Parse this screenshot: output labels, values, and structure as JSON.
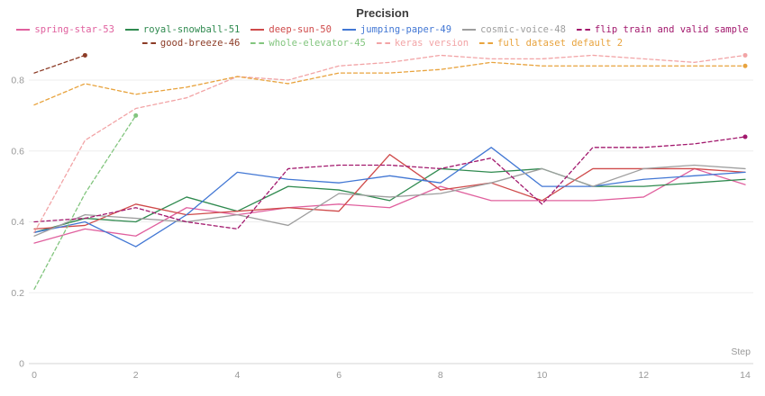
{
  "header": {
    "title": "Precision"
  },
  "chart_data": {
    "type": "line",
    "title": "Precision",
    "xlabel": "Step",
    "ylabel": "",
    "x_range": [
      0,
      14
    ],
    "y_range": [
      0,
      0.93
    ],
    "x_ticks": [
      0,
      2,
      4,
      6,
      8,
      10,
      12,
      14
    ],
    "y_ticks": [
      0,
      0.2,
      0.4,
      0.6,
      0.8
    ],
    "grid": "horizontal-only",
    "legend_position": "top",
    "colors": {
      "grid": "#ededed",
      "axis": "#d6d6d6",
      "tick_text": "#999999",
      "title_text": "#3b3b3b"
    },
    "series": [
      {
        "name": "spring-star-53",
        "color": "#e0609e",
        "style": "solid",
        "end_dot": false,
        "legend_row": 1,
        "x": [
          0,
          1,
          2,
          3,
          4,
          5,
          6,
          7,
          8,
          9,
          10,
          11,
          12,
          13,
          14
        ],
        "values": [
          0.34,
          0.38,
          0.36,
          0.44,
          0.42,
          0.44,
          0.45,
          0.44,
          0.5,
          0.46,
          0.46,
          0.46,
          0.47,
          0.55,
          0.505
        ]
      },
      {
        "name": "royal-snowball-51",
        "color": "#2f8a4f",
        "style": "solid",
        "end_dot": false,
        "legend_row": 1,
        "x": [
          0,
          1,
          2,
          3,
          4,
          5,
          6,
          7,
          8,
          9,
          10,
          11,
          12,
          13,
          14
        ],
        "values": [
          0.37,
          0.41,
          0.4,
          0.47,
          0.43,
          0.5,
          0.49,
          0.46,
          0.55,
          0.54,
          0.55,
          0.5,
          0.5,
          0.51,
          0.52
        ]
      },
      {
        "name": "deep-sun-50",
        "color": "#cf4a4a",
        "style": "solid",
        "end_dot": false,
        "legend_row": 1,
        "x": [
          0,
          1,
          2,
          3,
          4,
          5,
          6,
          7,
          8,
          9,
          10,
          11,
          12,
          13,
          14
        ],
        "values": [
          0.38,
          0.39,
          0.45,
          0.42,
          0.43,
          0.44,
          0.43,
          0.59,
          0.49,
          0.51,
          0.46,
          0.55,
          0.55,
          0.55,
          0.54
        ]
      },
      {
        "name": "jumping-paper-49",
        "color": "#4277d4",
        "style": "solid",
        "end_dot": false,
        "legend_row": 1,
        "x": [
          0,
          1,
          2,
          3,
          4,
          5,
          6,
          7,
          8,
          9,
          10,
          11,
          12,
          13,
          14
        ],
        "values": [
          0.37,
          0.4,
          0.33,
          0.42,
          0.54,
          0.52,
          0.51,
          0.53,
          0.51,
          0.61,
          0.5,
          0.5,
          0.52,
          0.53,
          0.54
        ]
      },
      {
        "name": "cosmic-voice-48",
        "color": "#9e9e9e",
        "style": "solid",
        "end_dot": false,
        "legend_row": 1,
        "x": [
          0,
          1,
          2,
          3,
          4,
          5,
          6,
          7,
          8,
          9,
          10,
          11,
          12,
          13,
          14
        ],
        "values": [
          0.36,
          0.42,
          0.41,
          0.4,
          0.42,
          0.39,
          0.48,
          0.47,
          0.48,
          0.51,
          0.55,
          0.5,
          0.55,
          0.56,
          0.55
        ]
      },
      {
        "name": "flip train and valid sample",
        "color": "#a2186d",
        "style": "dashed",
        "end_dot": true,
        "legend_row": 1,
        "x": [
          0,
          1,
          2,
          3,
          4,
          5,
          6,
          7,
          8,
          9,
          10,
          11,
          12,
          13,
          14
        ],
        "values": [
          0.4,
          0.41,
          0.44,
          0.4,
          0.38,
          0.55,
          0.56,
          0.56,
          0.55,
          0.58,
          0.45,
          0.61,
          0.61,
          0.62,
          0.64
        ]
      },
      {
        "name": "good-breeze-46",
        "color": "#8c3b26",
        "style": "dashed",
        "end_dot": true,
        "legend_row": 2,
        "x": [
          0,
          1
        ],
        "values": [
          0.82,
          0.87
        ]
      },
      {
        "name": "whole-elevator-45",
        "color": "#82c57e",
        "style": "dashed",
        "end_dot": true,
        "legend_row": 2,
        "x": [
          0,
          1,
          2
        ],
        "values": [
          0.21,
          0.48,
          0.7
        ]
      },
      {
        "name": "keras version",
        "color": "#f2a4a6",
        "style": "dashed",
        "end_dot": true,
        "legend_row": 2,
        "x": [
          0,
          1,
          2,
          3,
          4,
          5,
          6,
          7,
          8,
          9,
          10,
          11,
          12,
          13,
          14
        ],
        "values": [
          0.37,
          0.63,
          0.72,
          0.75,
          0.81,
          0.8,
          0.84,
          0.85,
          0.87,
          0.86,
          0.86,
          0.87,
          0.86,
          0.85,
          0.87
        ]
      },
      {
        "name": "full dataset default 2",
        "color": "#e8a33d",
        "style": "dashed",
        "end_dot": true,
        "legend_row": 2,
        "x": [
          0,
          1,
          2,
          3,
          4,
          5,
          6,
          7,
          8,
          9,
          10,
          11,
          12,
          13,
          14
        ],
        "values": [
          0.73,
          0.79,
          0.76,
          0.78,
          0.81,
          0.79,
          0.82,
          0.82,
          0.83,
          0.85,
          0.84,
          0.84,
          0.84,
          0.84,
          0.84
        ]
      }
    ]
  }
}
